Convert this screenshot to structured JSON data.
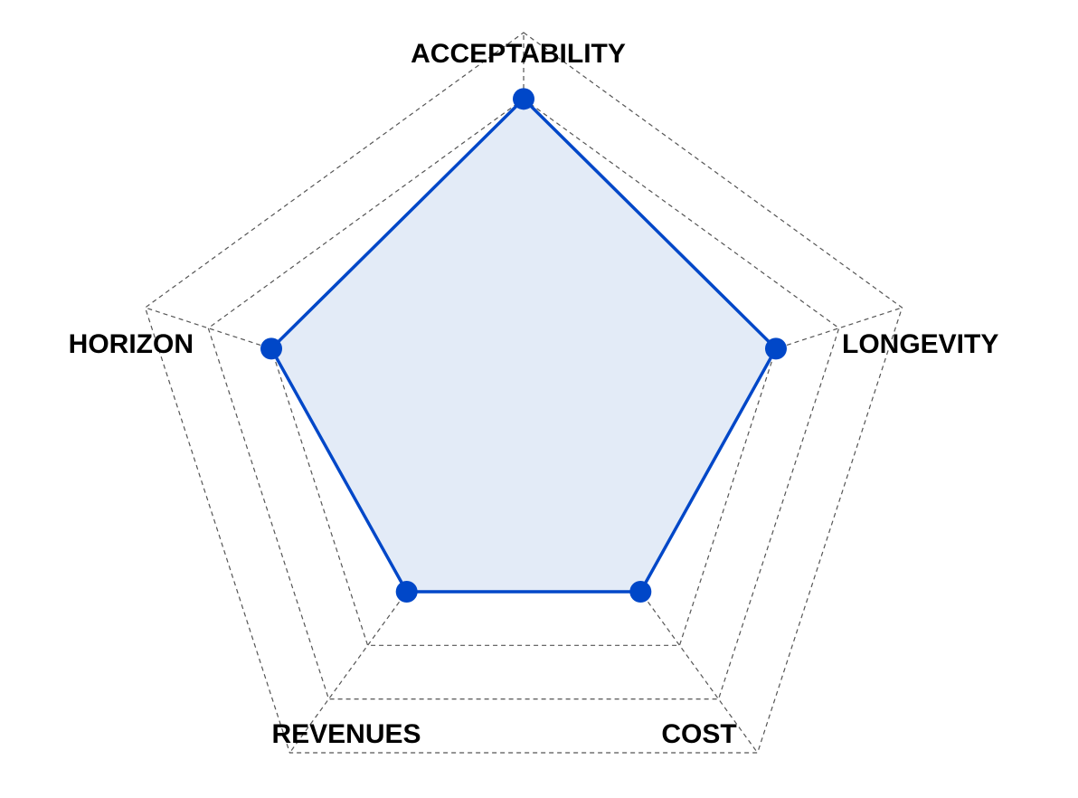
{
  "chart_data": {
    "type": "radar",
    "categories": [
      "ACCEPTABILITY",
      "LONGEVITY",
      "COST",
      "REVENUES",
      "HORIZON"
    ],
    "series": [
      {
        "values": [
          5,
          4,
          3,
          3,
          4
        ]
      }
    ],
    "rmax": 6,
    "rings": 6,
    "grid": true,
    "colors": {
      "line": "#0047c8",
      "fill": "#e3ebf7",
      "marker": "#0047c8"
    }
  }
}
